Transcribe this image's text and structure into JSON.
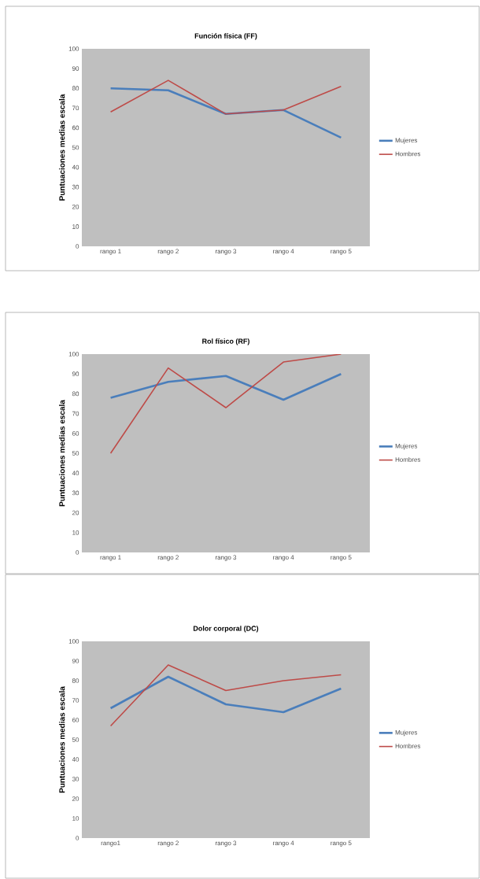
{
  "chart_data": [
    {
      "type": "line",
      "title": "Función física (FF)",
      "ylabel": "Puntuaciones medias escala",
      "categories": [
        "rango 1",
        "rango 2",
        "rango 3",
        "rango 4",
        "rango 5"
      ],
      "series": [
        {
          "name": "Mujeres",
          "color": "#4a7ebb",
          "values": [
            80,
            79,
            67,
            69,
            55
          ]
        },
        {
          "name": "Hombres",
          "color": "#be4b48",
          "values": [
            68,
            84,
            67,
            69,
            81
          ]
        }
      ],
      "ylim": [
        0,
        100
      ],
      "yticks": [
        0,
        10,
        20,
        30,
        40,
        50,
        60,
        70,
        80,
        90,
        100
      ],
      "legend": "right",
      "marker": "none"
    },
    {
      "type": "line",
      "title": "Rol físico (RF)",
      "ylabel": "Puntuaciones medias escala",
      "categories": [
        "rango 1",
        "rango 2",
        "rango 3",
        "rango 4",
        "rango 5"
      ],
      "series": [
        {
          "name": "Mujeres",
          "color": "#4a7ebb",
          "values": [
            78,
            86,
            89,
            77,
            90
          ]
        },
        {
          "name": "Hombres",
          "color": "#be4b48",
          "values": [
            50,
            93,
            73,
            96,
            100
          ]
        }
      ],
      "ylim": [
        0,
        100
      ],
      "yticks": [
        0,
        10,
        20,
        30,
        40,
        50,
        60,
        70,
        80,
        90,
        100
      ],
      "legend": "right",
      "marker": "none"
    },
    {
      "type": "line",
      "title": "Dolor corporal (DC)",
      "ylabel": "Puntuaciones medias escala",
      "categories": [
        "rango1",
        "rango 2",
        "rango 3",
        "rango 4",
        "rango 5"
      ],
      "series": [
        {
          "name": "Mujeres",
          "color": "#4a7ebb",
          "values": [
            66,
            82,
            68,
            64,
            76
          ]
        },
        {
          "name": "Hombres",
          "color": "#be4b48",
          "values": [
            57,
            88,
            75,
            80,
            83
          ]
        }
      ],
      "ylim": [
        0,
        100
      ],
      "yticks": [
        0,
        10,
        20,
        30,
        40,
        50,
        60,
        70,
        80,
        90,
        100
      ],
      "legend": "right",
      "marker": "none"
    }
  ]
}
